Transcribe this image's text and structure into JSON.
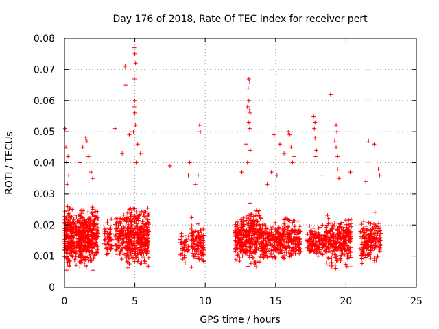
{
  "chart_data": {
    "type": "scatter",
    "title": "Day 176 of 2018, Rate Of TEC Index for receiver pert",
    "xlabel": "GPS time / hours",
    "ylabel": "ROTI / TECUs",
    "xlim": [
      0,
      25
    ],
    "ylim": [
      0,
      0.08
    ],
    "xticks": [
      "0",
      "5",
      "10",
      "15",
      "20",
      "25"
    ],
    "yticks": [
      "0",
      "0.01",
      "0.02",
      "0.03",
      "0.04",
      "0.05",
      "0.06",
      "0.07",
      "0.08"
    ],
    "grid": true,
    "marker": "+",
    "color": "#ff0000",
    "series": [
      {
        "name": "ROTI",
        "clusters": [
          {
            "x": [
              0.0,
              0.55
            ],
            "y": [
              0.005,
              0.03
            ],
            "n": 160
          },
          {
            "x": [
              0.5,
              1.2
            ],
            "y": [
              0.006,
              0.028
            ],
            "n": 120
          },
          {
            "x": [
              1.0,
              2.4
            ],
            "y": [
              0.006,
              0.03
            ],
            "n": 320
          },
          {
            "x": [
              2.8,
              3.4
            ],
            "y": [
              0.008,
              0.025
            ],
            "n": 60
          },
          {
            "x": [
              3.6,
              4.4
            ],
            "y": [
              0.008,
              0.027
            ],
            "n": 100
          },
          {
            "x": [
              4.4,
              6.0
            ],
            "y": [
              0.006,
              0.03
            ],
            "n": 340
          },
          {
            "x": [
              8.2,
              8.9
            ],
            "y": [
              0.008,
              0.02
            ],
            "n": 50
          },
          {
            "x": [
              9.0,
              9.9
            ],
            "y": [
              0.006,
              0.025
            ],
            "n": 120
          },
          {
            "x": [
              12.1,
              13.0
            ],
            "y": [
              0.007,
              0.026
            ],
            "n": 160
          },
          {
            "x": [
              13.0,
              14.0
            ],
            "y": [
              0.007,
              0.03
            ],
            "n": 190
          },
          {
            "x": [
              14.0,
              15.0
            ],
            "y": [
              0.008,
              0.024
            ],
            "n": 130
          },
          {
            "x": [
              15.0,
              16.8
            ],
            "y": [
              0.008,
              0.025
            ],
            "n": 230
          },
          {
            "x": [
              17.2,
              18.6
            ],
            "y": [
              0.009,
              0.022
            ],
            "n": 150
          },
          {
            "x": [
              18.6,
              20.4
            ],
            "y": [
              0.006,
              0.027
            ],
            "n": 270
          },
          {
            "x": [
              21.0,
              22.5
            ],
            "y": [
              0.007,
              0.026
            ],
            "n": 190
          }
        ],
        "outliers": [
          [
            0.05,
            0.051
          ],
          [
            0.1,
            0.045
          ],
          [
            0.15,
            0.04
          ],
          [
            0.25,
            0.042
          ],
          [
            0.3,
            0.036
          ],
          [
            0.2,
            0.033
          ],
          [
            1.1,
            0.04
          ],
          [
            1.3,
            0.045
          ],
          [
            1.5,
            0.048
          ],
          [
            1.6,
            0.047
          ],
          [
            1.7,
            0.042
          ],
          [
            1.9,
            0.037
          ],
          [
            2.0,
            0.035
          ],
          [
            3.6,
            0.051
          ],
          [
            4.3,
            0.071
          ],
          [
            4.35,
            0.065
          ],
          [
            4.1,
            0.043
          ],
          [
            4.6,
            0.049
          ],
          [
            4.8,
            0.05
          ],
          [
            4.95,
            0.077
          ],
          [
            5.0,
            0.075
          ],
          [
            5.05,
            0.072
          ],
          [
            4.97,
            0.067
          ],
          [
            5.0,
            0.06
          ],
          [
            4.95,
            0.058
          ],
          [
            5.0,
            0.056
          ],
          [
            5.05,
            0.052
          ],
          [
            4.9,
            0.05
          ],
          [
            5.2,
            0.046
          ],
          [
            5.4,
            0.043
          ],
          [
            5.1,
            0.04
          ],
          [
            7.5,
            0.039
          ],
          [
            8.9,
            0.04
          ],
          [
            8.8,
            0.036
          ],
          [
            9.6,
            0.052
          ],
          [
            9.65,
            0.05
          ],
          [
            9.5,
            0.036
          ],
          [
            9.3,
            0.033
          ],
          [
            13.1,
            0.067
          ],
          [
            13.15,
            0.066
          ],
          [
            13.05,
            0.064
          ],
          [
            13.1,
            0.06
          ],
          [
            13.0,
            0.058
          ],
          [
            13.15,
            0.057
          ],
          [
            13.2,
            0.056
          ],
          [
            13.1,
            0.053
          ],
          [
            13.15,
            0.051
          ],
          [
            12.9,
            0.046
          ],
          [
            13.2,
            0.044
          ],
          [
            13.0,
            0.04
          ],
          [
            12.6,
            0.037
          ],
          [
            14.9,
            0.049
          ],
          [
            15.3,
            0.046
          ],
          [
            15.6,
            0.043
          ],
          [
            15.9,
            0.05
          ],
          [
            16.0,
            0.049
          ],
          [
            16.1,
            0.045
          ],
          [
            16.3,
            0.042
          ],
          [
            16.2,
            0.04
          ],
          [
            14.7,
            0.037
          ],
          [
            15.1,
            0.036
          ],
          [
            14.4,
            0.033
          ],
          [
            17.7,
            0.055
          ],
          [
            17.8,
            0.053
          ],
          [
            17.75,
            0.051
          ],
          [
            17.8,
            0.048
          ],
          [
            17.9,
            0.044
          ],
          [
            17.85,
            0.042
          ],
          [
            18.3,
            0.036
          ],
          [
            18.9,
            0.062
          ],
          [
            19.3,
            0.052
          ],
          [
            19.35,
            0.05
          ],
          [
            19.2,
            0.047
          ],
          [
            19.3,
            0.045
          ],
          [
            19.4,
            0.042
          ],
          [
            19.4,
            0.038
          ],
          [
            19.5,
            0.035
          ],
          [
            20.3,
            0.037
          ],
          [
            21.6,
            0.047
          ],
          [
            22.0,
            0.046
          ],
          [
            22.3,
            0.038
          ],
          [
            22.4,
            0.036
          ],
          [
            21.4,
            0.034
          ]
        ]
      }
    ]
  }
}
